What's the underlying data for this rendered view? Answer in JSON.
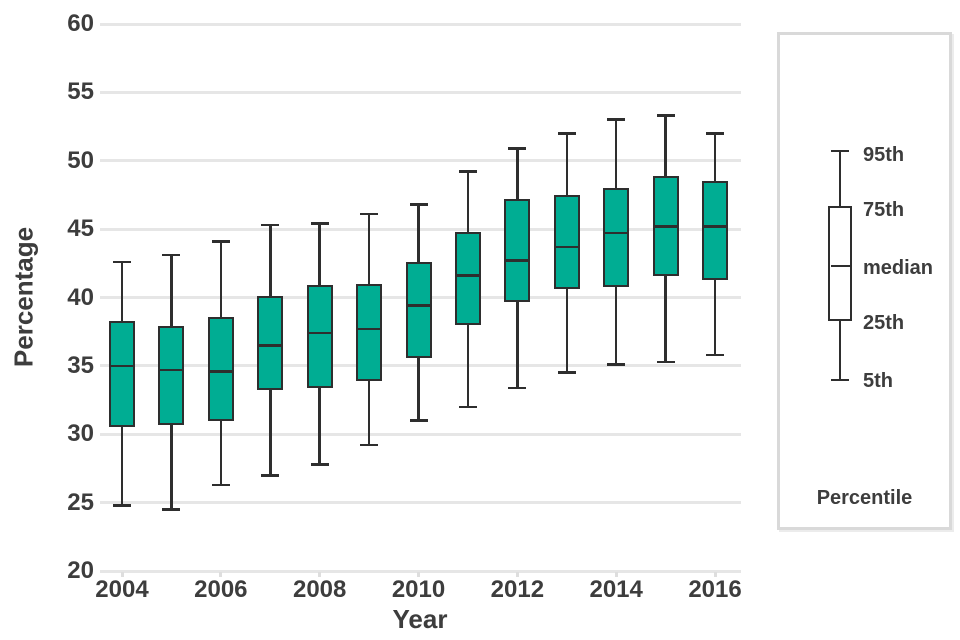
{
  "page": {
    "background": "#ffffff"
  },
  "colors": {
    "box_fill": "#00ad93",
    "box_stroke": "#2e2e2e",
    "gridline": "#e6e6e6",
    "minor_tick": "#dedede",
    "tick_text": "#3d3d3d",
    "legend_border": "#d9d9d9",
    "legend_glyph_fill": "#ffffff"
  },
  "axes": {
    "y_title": "Percentage",
    "x_title": "Year",
    "y_tick_labels": [
      "60",
      "55",
      "50",
      "45",
      "40",
      "35",
      "30",
      "25",
      "20"
    ],
    "x_tick_labels": [
      "2004",
      "2006",
      "2008",
      "2010",
      "2012",
      "2014",
      "2016"
    ]
  },
  "legend": {
    "title": "Percentile",
    "entries": [
      "95th",
      "75th",
      "median",
      "25th",
      "5th"
    ]
  },
  "chart_data": {
    "type": "boxplot",
    "title": "",
    "xlabel": "Year",
    "ylabel": "Percentage",
    "ylim": [
      20,
      60
    ],
    "y_ticks": [
      20,
      25,
      30,
      35,
      40,
      45,
      50,
      55,
      60
    ],
    "x_ticks": [
      2004,
      2006,
      2008,
      2010,
      2012,
      2014,
      2016
    ],
    "grid": true,
    "legend_position": "right",
    "categories": [
      2004,
      2005,
      2006,
      2007,
      2008,
      2009,
      2010,
      2011,
      2012,
      2013,
      2014,
      2015,
      2016
    ],
    "series": [
      {
        "name": "5th",
        "values": [
          24.8,
          24.5,
          26.3,
          27.0,
          27.8,
          29.2,
          31.0,
          32.0,
          33.4,
          34.5,
          35.1,
          35.3,
          35.8
        ]
      },
      {
        "name": "25th",
        "values": [
          30.5,
          30.7,
          31.0,
          33.2,
          33.4,
          33.9,
          35.6,
          38.0,
          39.7,
          40.6,
          40.8,
          41.6,
          41.3
        ]
      },
      {
        "name": "median",
        "values": [
          35.0,
          34.7,
          34.6,
          36.5,
          37.4,
          37.7,
          39.4,
          41.6,
          42.7,
          43.7,
          44.7,
          45.2,
          45.2
        ]
      },
      {
        "name": "75th",
        "values": [
          38.3,
          37.9,
          38.6,
          40.1,
          40.9,
          41.0,
          42.6,
          44.8,
          47.2,
          47.5,
          48.0,
          48.9,
          48.5
        ]
      },
      {
        "name": "95th",
        "values": [
          42.6,
          43.1,
          44.1,
          45.3,
          45.4,
          46.1,
          46.8,
          49.2,
          50.9,
          52.0,
          53.0,
          53.3,
          52.0
        ]
      }
    ]
  }
}
